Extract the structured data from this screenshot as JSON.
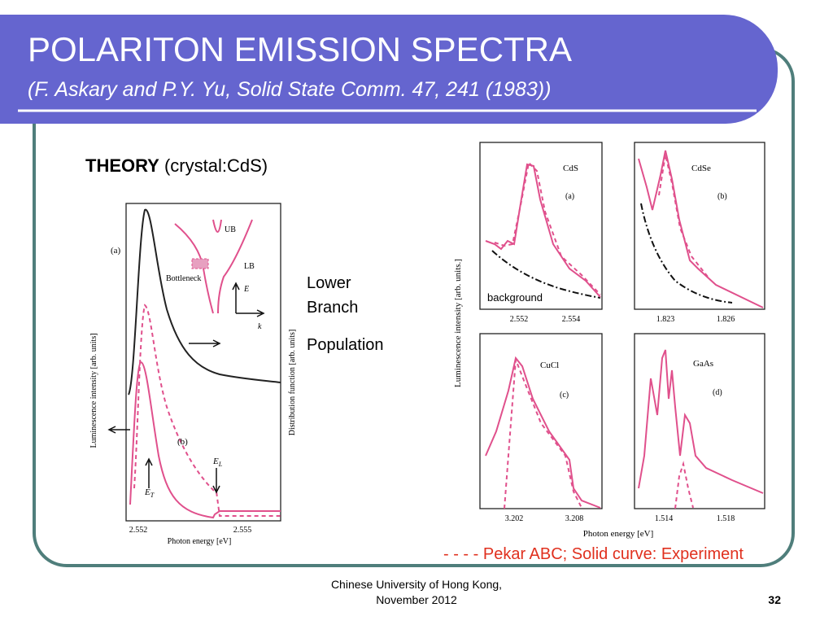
{
  "header": {
    "title": "POLARITON EMISSION SPECTRA",
    "subtitle": "(F. Askary and P.Y. Yu, Solid State Comm. 47, 241 (1983))"
  },
  "theory": {
    "heading": "THEORY",
    "note": "(crystal:CdS)"
  },
  "side_labels": [
    "Lower",
    "Branch",
    "Population"
  ],
  "left_figure": {
    "panel_a": "(a)",
    "panel_b": "(b)",
    "inset": {
      "ub": "UB",
      "lb": "LB",
      "bottleneck": "Bottleneck",
      "e": "E",
      "k": "k"
    },
    "y_label": "Luminescence intensity [arb. units]",
    "y2_label": "Distribution function [arb. units]",
    "x_ticks": [
      "2.552",
      "2.555"
    ],
    "x_label": "Photon energy  [eV]",
    "marker_t": {
      "symbol": "E",
      "sub": "T"
    },
    "marker_l": {
      "symbol": "E",
      "sub": "L"
    }
  },
  "right_figure": {
    "y_label": "Luminescence intensity [arb. units.]",
    "x_label": "Photon energy  [eV]",
    "panels": [
      {
        "material": "CdS",
        "tag": "(a)",
        "ticks": [
          "2.552",
          "2.554"
        ],
        "note": "background"
      },
      {
        "material": "CdSe",
        "tag": "(b)",
        "ticks": [
          "1.823",
          "1.826"
        ]
      },
      {
        "material": "CuCl",
        "tag": "(c)",
        "ticks": [
          "3.202",
          "3.208"
        ]
      },
      {
        "material": "GaAs",
        "tag": "(d)",
        "ticks": [
          "1.514",
          "1.518"
        ]
      }
    ]
  },
  "legend": "- - - - Pekar ABC;  Solid curve: Experiment",
  "footer": {
    "source": [
      "Chinese University of Hong Kong,",
      "November 2012"
    ],
    "page": "32"
  }
}
